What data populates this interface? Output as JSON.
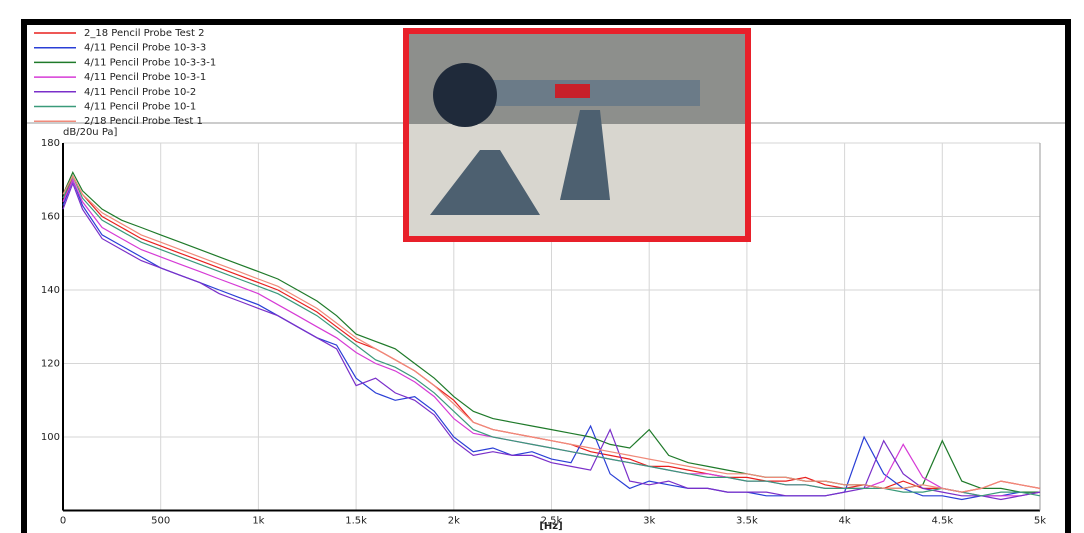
{
  "chart_data": {
    "type": "line",
    "y_label": "dB/20u Pa]",
    "x_label": "[Hz]",
    "legend": "top-left",
    "grid": true,
    "xlim": [
      0,
      5000
    ],
    "ylim": [
      80,
      180
    ],
    "xticks": [
      0,
      500,
      {
        "value": 1000,
        "label": "1k"
      },
      {
        "value": 1500,
        "label": "1.5k"
      },
      {
        "value": 2000,
        "label": "2k"
      },
      {
        "value": 2500,
        "label": "2.5k"
      },
      {
        "value": 3000,
        "label": "3k"
      },
      {
        "value": 3500,
        "label": "3.5k"
      },
      {
        "value": 4000,
        "label": "4k"
      },
      {
        "value": 4500,
        "label": "4.5k"
      },
      {
        "value": 5000,
        "label": "5k"
      }
    ],
    "yticks": [
      100,
      120,
      140,
      160,
      180
    ],
    "x": [
      0,
      50,
      100,
      200,
      300,
      400,
      500,
      600,
      700,
      800,
      900,
      1000,
      1100,
      1200,
      1300,
      1400,
      1500,
      1600,
      1700,
      1800,
      1900,
      2000,
      2100,
      2200,
      2300,
      2400,
      2500,
      2600,
      2700,
      2800,
      2900,
      3000,
      3100,
      3200,
      3300,
      3400,
      3500,
      3600,
      3700,
      3800,
      3900,
      4000,
      4100,
      4200,
      4300,
      4400,
      4500,
      4600,
      4700,
      4800,
      4900,
      5000
    ],
    "series": [
      {
        "name": "2_18 Pencil Probe Test 2",
        "color": "#e8211f",
        "values": [
          164,
          171,
          166,
          160,
          157,
          154,
          152,
          150,
          148,
          146,
          144,
          142,
          140,
          137,
          134,
          130,
          126,
          124,
          121,
          118,
          114,
          110,
          104,
          102,
          101,
          100,
          99,
          98,
          96,
          95,
          94,
          92,
          92,
          91,
          90,
          89,
          89,
          88,
          88,
          89,
          87,
          86,
          87,
          86,
          88,
          86,
          86,
          85,
          86,
          88,
          87,
          86
        ]
      },
      {
        "name": "4/11 Pencil Probe 10-3-3",
        "color": "#2a3fd6",
        "values": [
          163,
          170,
          163,
          155,
          152,
          149,
          146,
          144,
          142,
          140,
          138,
          136,
          133,
          130,
          127,
          125,
          116,
          112,
          110,
          111,
          107,
          100,
          96,
          97,
          95,
          96,
          94,
          93,
          103,
          90,
          86,
          88,
          87,
          86,
          86,
          85,
          85,
          84,
          84,
          84,
          84,
          85,
          100,
          90,
          86,
          84,
          84,
          83,
          84,
          84,
          85,
          85
        ]
      },
      {
        "name": "4/11 Pencil Probe 10-3-3-1",
        "color": "#1f7a2a",
        "values": [
          166,
          172,
          167,
          162,
          159,
          157,
          155,
          153,
          151,
          149,
          147,
          145,
          143,
          140,
          137,
          133,
          128,
          126,
          124,
          120,
          116,
          111,
          107,
          105,
          104,
          103,
          102,
          101,
          100,
          98,
          97,
          102,
          95,
          93,
          92,
          91,
          90,
          89,
          89,
          88,
          88,
          87,
          87,
          86,
          86,
          87,
          99,
          88,
          86,
          86,
          85,
          85
        ]
      },
      {
        "name": "4/11 Pencil Probe 10-3-1",
        "color": "#d63bd6",
        "values": [
          164,
          170,
          164,
          157,
          154,
          151,
          149,
          147,
          145,
          143,
          141,
          139,
          136,
          133,
          130,
          127,
          123,
          120,
          118,
          115,
          111,
          105,
          101,
          100,
          99,
          98,
          97,
          96,
          95,
          94,
          93,
          92,
          91,
          90,
          90,
          89,
          88,
          88,
          87,
          87,
          86,
          86,
          86,
          88,
          98,
          89,
          86,
          85,
          84,
          84,
          84,
          85
        ]
      },
      {
        "name": "4/11 Pencil Probe 10-2",
        "color": "#7a2fc9",
        "values": [
          162,
          169,
          162,
          154,
          151,
          148,
          146,
          144,
          142,
          139,
          137,
          135,
          133,
          130,
          127,
          124,
          114,
          116,
          112,
          110,
          106,
          99,
          95,
          96,
          95,
          95,
          93,
          92,
          91,
          102,
          88,
          87,
          88,
          86,
          86,
          85,
          85,
          85,
          84,
          84,
          84,
          85,
          86,
          99,
          90,
          86,
          85,
          84,
          84,
          83,
          84,
          85
        ]
      },
      {
        "name": "4/11 Pencil Probe 10-1",
        "color": "#3a9a7a",
        "values": [
          165,
          171,
          165,
          159,
          156,
          153,
          151,
          149,
          147,
          145,
          143,
          141,
          139,
          136,
          133,
          129,
          125,
          121,
          119,
          116,
          112,
          107,
          102,
          100,
          99,
          98,
          97,
          96,
          95,
          94,
          93,
          92,
          91,
          90,
          89,
          89,
          88,
          88,
          87,
          87,
          86,
          86,
          86,
          86,
          85,
          85,
          86,
          85,
          84,
          85,
          85,
          84
        ]
      },
      {
        "name": "2/18 Pencil Probe Test 1",
        "color": "#f08a7a",
        "values": [
          166,
          171,
          166,
          161,
          158,
          155,
          153,
          151,
          149,
          147,
          145,
          143,
          141,
          138,
          135,
          131,
          127,
          124,
          121,
          118,
          114,
          109,
          104,
          102,
          101,
          100,
          99,
          98,
          97,
          96,
          95,
          94,
          93,
          92,
          91,
          90,
          90,
          89,
          89,
          88,
          88,
          87,
          87,
          86,
          86,
          87,
          86,
          85,
          86,
          88,
          87,
          86
        ]
      }
    ]
  }
}
